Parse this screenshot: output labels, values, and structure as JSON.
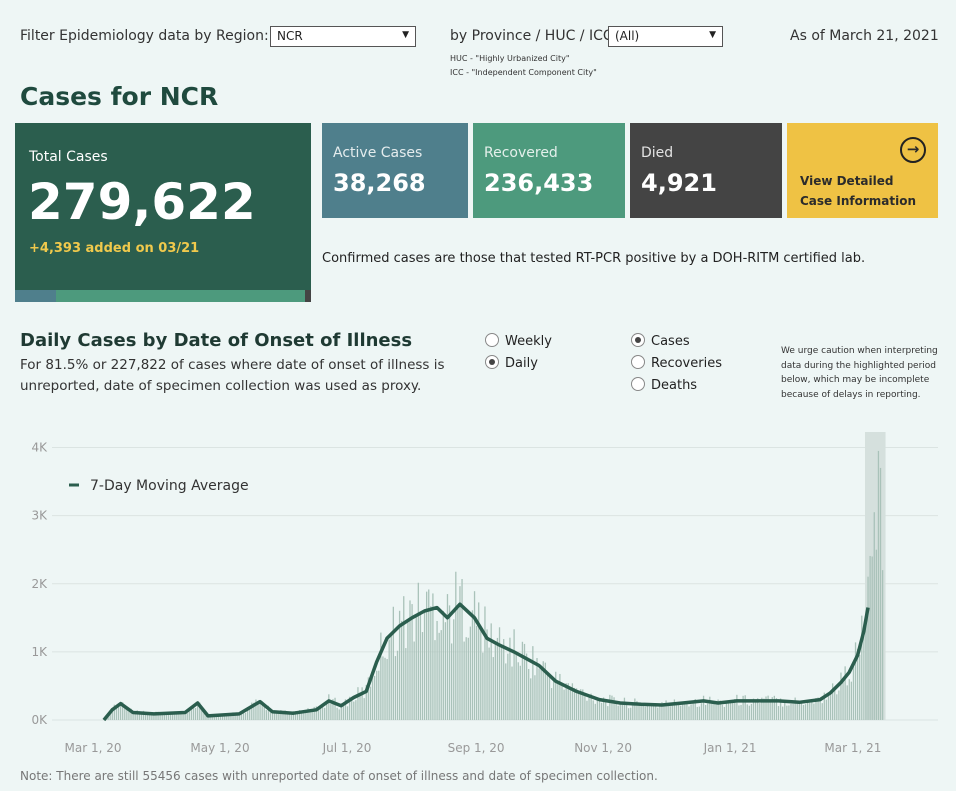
{
  "filters": {
    "region_label": "Filter Epidemiology data by Region:",
    "region_value": "NCR",
    "province_label": "by Province / HUC / ICC:",
    "province_value": "(All)",
    "huc_note": "HUC - \"Highly Urbanized City\"",
    "icc_note": "ICC - \"Independent Component City\"",
    "as_of": "As of March 21, 2021"
  },
  "page_title": "Cases for NCR",
  "cards": {
    "total_label": "Total Cases",
    "total_value": "279,622",
    "total_added": "+4,393 added on 03/21",
    "active_label": "Active Cases",
    "active_value": "38,268",
    "recovered_label": "Recovered",
    "recovered_value": "236,433",
    "died_label": "Died",
    "died_value": "4,921",
    "detail_line1": "View Detailed",
    "detail_line2": "Case Information"
  },
  "confirmed_note": "Confirmed cases are those that tested RT-PCR positive by a DOH-RITM certified lab.",
  "daily_section": {
    "title": "Daily Cases by Date of Onset of Illness",
    "description": "For 81.5% or 227,822 of cases where date of onset of illness is unreported, date of specimen collection was used as proxy.",
    "period_options": [
      {
        "label": "Weekly",
        "selected": false
      },
      {
        "label": "Daily",
        "selected": true
      }
    ],
    "metric_options": [
      {
        "label": "Cases",
        "selected": true
      },
      {
        "label": "Recoveries",
        "selected": false
      },
      {
        "label": "Deaths",
        "selected": false
      }
    ],
    "caution": "We urge caution when interpreting data during the highlighted period below, which may be incomplete because of delays in reporting."
  },
  "colors": {
    "total": "#2b5e4e",
    "active": "#4f7f8c",
    "recovered": "#4d9a7d",
    "died": "#444444",
    "detail": "#efc244",
    "bars": "#a9c2b9",
    "line": "#2b5e4e"
  },
  "chart_data": {
    "type": "bar",
    "ytick_labels": [
      "0K",
      "1K",
      "2K",
      "3K",
      "4K"
    ],
    "ylim": [
      0,
      4000
    ],
    "xtick_labels": [
      "Mar 1, 20",
      "May 1, 20",
      "Jul 1, 20",
      "Sep 1, 20",
      "Nov 1, 20",
      "Jan 1, 21",
      "Mar 1, 21"
    ],
    "legend": "7-Day Moving Average",
    "grid": true,
    "highlight_period": [
      "2021-03-14",
      "2021-03-21"
    ],
    "moving_average_points": [
      [
        "2020-03-12",
        0
      ],
      [
        "2020-03-16",
        150
      ],
      [
        "2020-03-20",
        240
      ],
      [
        "2020-03-26",
        110
      ],
      [
        "2020-04-05",
        90
      ],
      [
        "2020-04-20",
        110
      ],
      [
        "2020-04-26",
        250
      ],
      [
        "2020-05-01",
        60
      ],
      [
        "2020-05-16",
        90
      ],
      [
        "2020-05-26",
        270
      ],
      [
        "2020-06-01",
        120
      ],
      [
        "2020-06-11",
        100
      ],
      [
        "2020-06-22",
        150
      ],
      [
        "2020-06-28",
        280
      ],
      [
        "2020-07-04",
        210
      ],
      [
        "2020-07-10",
        330
      ],
      [
        "2020-07-16",
        420
      ],
      [
        "2020-07-21",
        850
      ],
      [
        "2020-07-26",
        1200
      ],
      [
        "2020-08-01",
        1380
      ],
      [
        "2020-08-07",
        1500
      ],
      [
        "2020-08-13",
        1600
      ],
      [
        "2020-08-19",
        1650
      ],
      [
        "2020-08-24",
        1500
      ],
      [
        "2020-08-30",
        1700
      ],
      [
        "2020-09-06",
        1500
      ],
      [
        "2020-09-12",
        1200
      ],
      [
        "2020-09-18",
        1100
      ],
      [
        "2020-09-25",
        1000
      ],
      [
        "2020-10-01",
        900
      ],
      [
        "2020-10-07",
        800
      ],
      [
        "2020-10-15",
        570
      ],
      [
        "2020-10-25",
        420
      ],
      [
        "2020-11-05",
        300
      ],
      [
        "2020-11-15",
        250
      ],
      [
        "2020-11-25",
        230
      ],
      [
        "2020-12-05",
        220
      ],
      [
        "2020-12-15",
        250
      ],
      [
        "2020-12-25",
        280
      ],
      [
        "2021-01-01",
        250
      ],
      [
        "2021-01-10",
        280
      ],
      [
        "2021-01-20",
        280
      ],
      [
        "2021-01-30",
        280
      ],
      [
        "2021-02-09",
        260
      ],
      [
        "2021-02-19",
        300
      ],
      [
        "2021-02-24",
        400
      ],
      [
        "2021-03-01",
        550
      ],
      [
        "2021-03-05",
        700
      ],
      [
        "2021-03-09",
        950
      ],
      [
        "2021-03-12",
        1300
      ],
      [
        "2021-03-14",
        1650
      ]
    ]
  },
  "footer_note": "Note: There are still 55456 cases with unreported date of onset of illness and date of specimen collection."
}
